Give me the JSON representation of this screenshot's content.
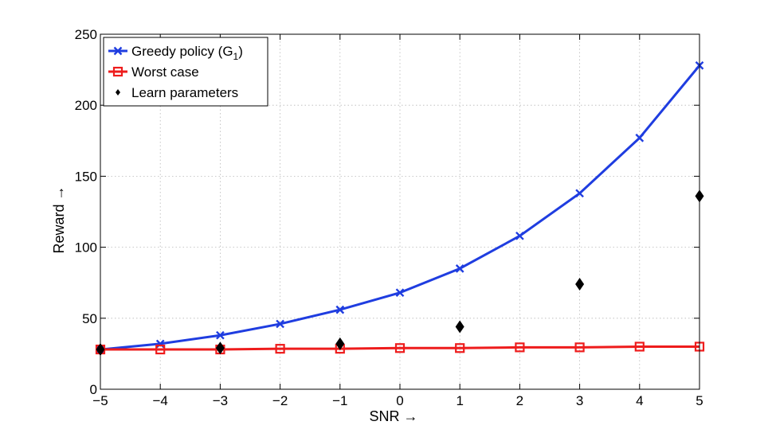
{
  "chart_data": {
    "type": "line",
    "xlabel": "SNR →",
    "ylabel": "Reward →",
    "xlim": [
      -5,
      5
    ],
    "ylim": [
      0,
      250
    ],
    "x_ticks": [
      -5,
      -4,
      -3,
      -2,
      -1,
      0,
      1,
      2,
      3,
      4,
      5
    ],
    "y_ticks": [
      0,
      50,
      100,
      150,
      200,
      250
    ],
    "x_tick_labels": [
      "−5",
      "−4",
      "−3",
      "−2",
      "−1",
      "0",
      "1",
      "2",
      "3",
      "4",
      "5"
    ],
    "y_tick_labels": [
      "0",
      "50",
      "100",
      "150",
      "200",
      "250"
    ],
    "grid": true,
    "legend_position": "top-left",
    "series": [
      {
        "name": "Greedy policy (G1)",
        "legend_main": "Greedy policy (G",
        "legend_sub": "1",
        "legend_close": ")",
        "marker": "x",
        "line": true,
        "color": "#1f3de0",
        "x": [
          -5,
          -4,
          -3,
          -2,
          -1,
          0,
          1,
          2,
          3,
          4,
          5
        ],
        "y": [
          28,
          32,
          38,
          46,
          56,
          68,
          85,
          108,
          138,
          177,
          228
        ]
      },
      {
        "name": "Worst case",
        "marker": "square",
        "line": true,
        "color": "#ee1c1c",
        "x": [
          -5,
          -4,
          -3,
          -2,
          -1,
          0,
          1,
          2,
          3,
          4,
          5
        ],
        "y": [
          28,
          28,
          28,
          28.5,
          28.5,
          29,
          29,
          29.5,
          29.5,
          30,
          30
        ]
      },
      {
        "name": "Learn parameters",
        "marker": "diamond",
        "line": false,
        "color": "#000000",
        "x": [
          -5,
          -3,
          -1,
          1,
          3,
          5
        ],
        "y": [
          28,
          29,
          32,
          44,
          74,
          136
        ]
      }
    ]
  }
}
